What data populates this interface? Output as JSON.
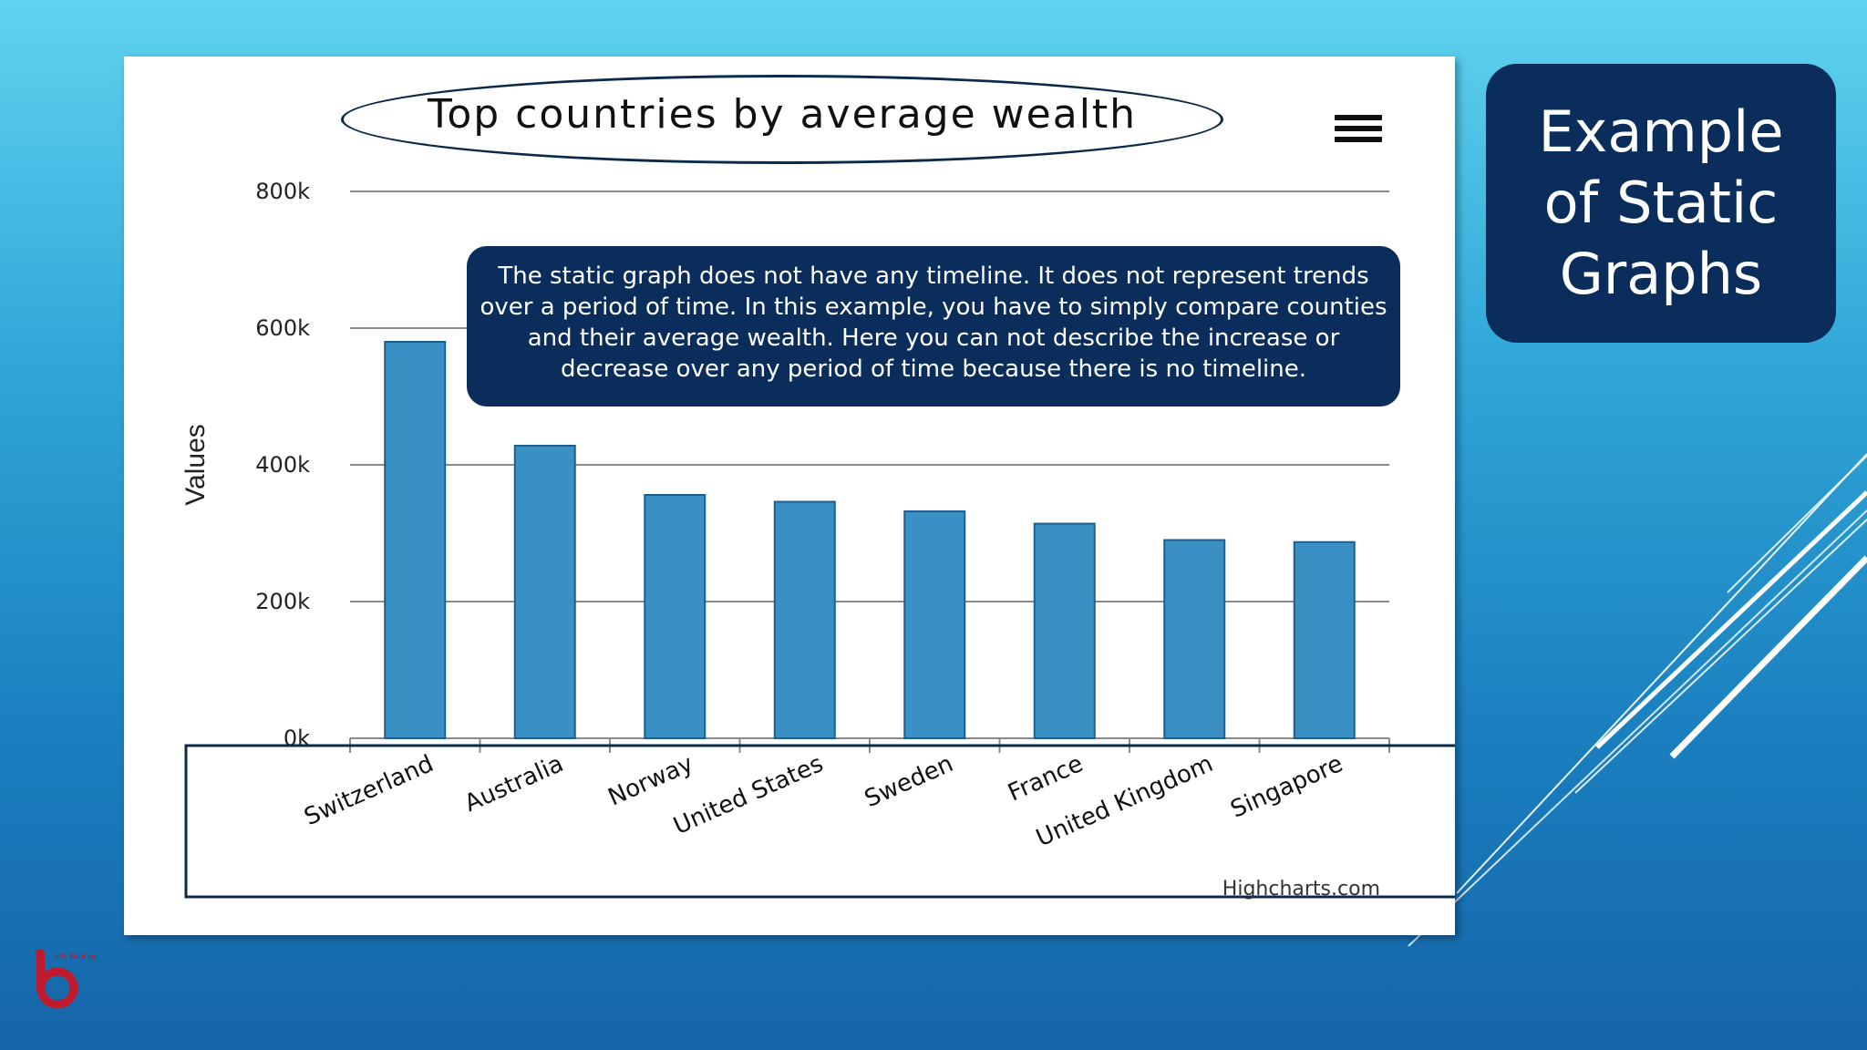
{
  "slide": {
    "title": "Example of Static Graphs",
    "note": "The static graph does not have any timeline. It does not represent trends over a period of time.  In this example, you have to simply compare counties and their average wealth. Here you can not describe the increase or decrease over any period of time because there is no timeline.",
    "logo_text": "ells Bool up..."
  },
  "chart_data": {
    "type": "bar",
    "title": "Top countries by average wealth",
    "ylabel": "Values",
    "xlabel": "",
    "categories": [
      "Switzerland",
      "Australia",
      "Norway",
      "United States",
      "Sweden",
      "France",
      "United Kingdom",
      "Singapore"
    ],
    "values": [
      580000,
      428000,
      356000,
      346000,
      332000,
      314000,
      290000,
      287000
    ],
    "ylim": [
      0,
      800000
    ],
    "yticks": [
      0,
      200000,
      400000,
      600000,
      800000
    ],
    "ytick_labels": [
      "0k",
      "200k",
      "400k",
      "600k",
      "800k"
    ],
    "grid": true,
    "credits": "Highcharts.com",
    "bar_color": "#3a8fc4"
  }
}
